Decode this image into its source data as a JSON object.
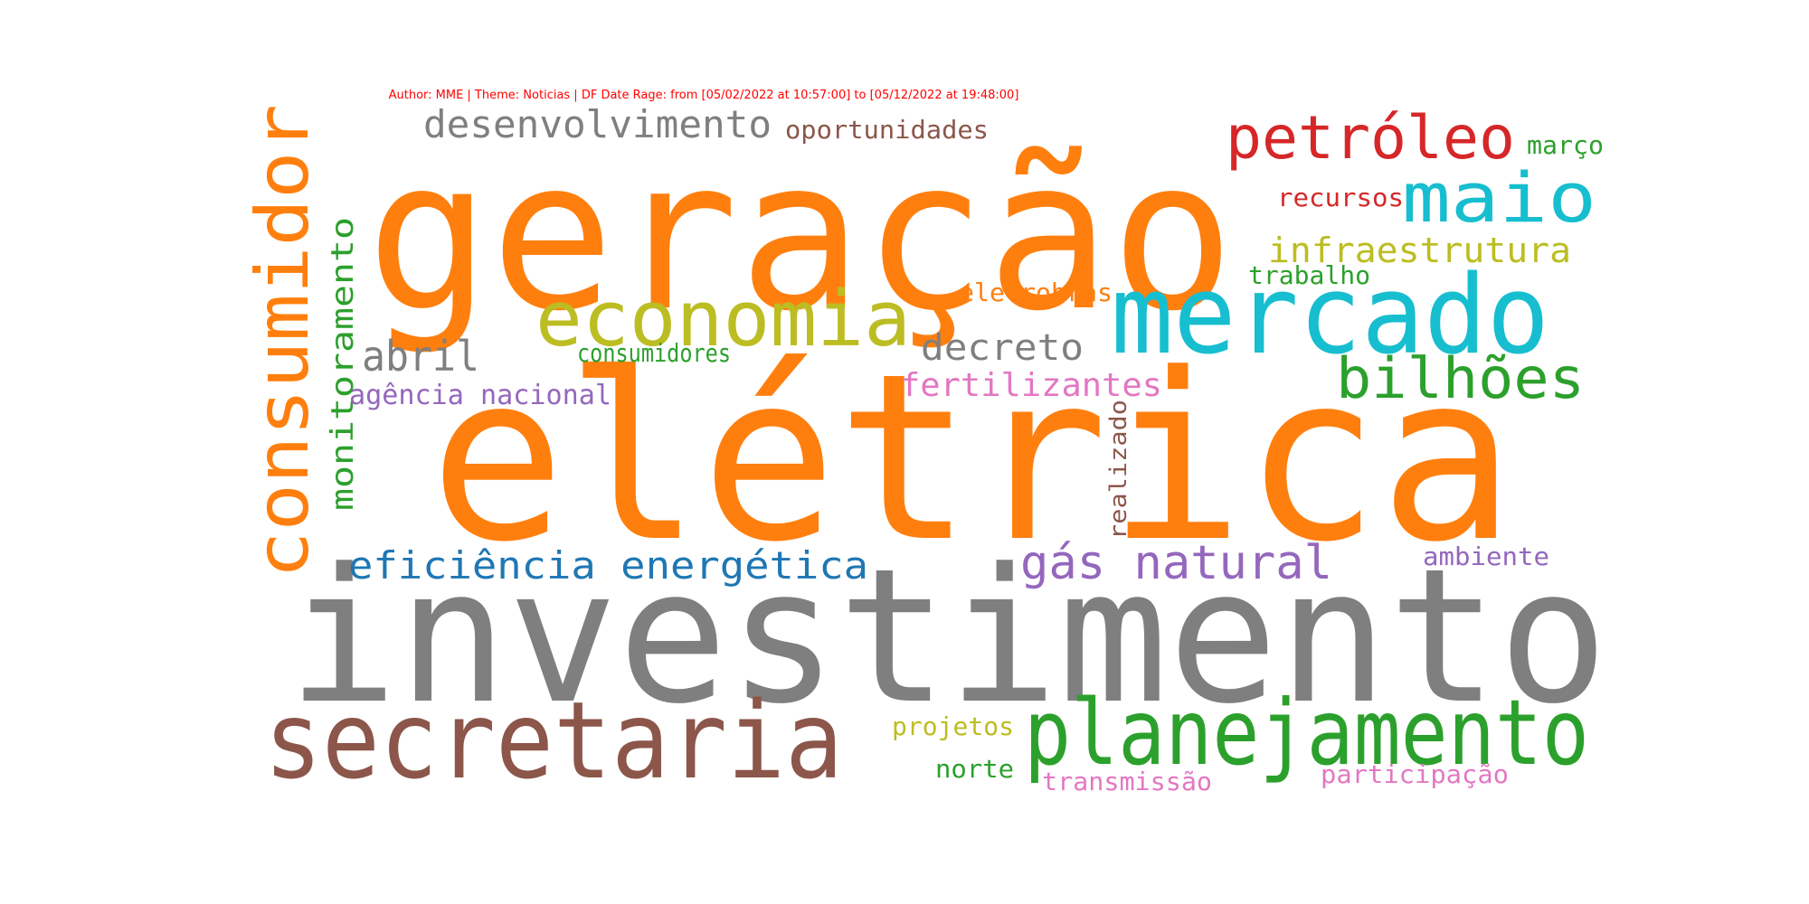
{
  "caption": "Author: MME | Theme: Noticias | DF Date Rage: from [05/02/2022 at 10:57:00] to [05/12/2022 at 19:48:00]",
  "colors": {
    "orange": "#ff7f0e",
    "gray": "#7f7f7f",
    "brown": "#8c564b",
    "green": "#2ca02c",
    "cyan": "#17becf",
    "olive": "#bcbd22",
    "red": "#d62728",
    "purple": "#9467bd",
    "blue": "#1f77b4",
    "pink": "#e377c2"
  },
  "words": [
    {
      "text": "elétrica",
      "color": "orange"
    },
    {
      "text": "geração",
      "color": "orange"
    },
    {
      "text": "investimento",
      "color": "gray"
    },
    {
      "text": "secretaria",
      "color": "brown"
    },
    {
      "text": "planejamento",
      "color": "green"
    },
    {
      "text": "mercado",
      "color": "cyan"
    },
    {
      "text": "consumidor",
      "color": "orange"
    },
    {
      "text": "economia",
      "color": "olive"
    },
    {
      "text": "petróleo",
      "color": "red"
    },
    {
      "text": "maio",
      "color": "cyan"
    },
    {
      "text": "bilhões",
      "color": "green"
    },
    {
      "text": "desenvolvimento",
      "color": "gray"
    },
    {
      "text": "gás natural",
      "color": "purple"
    },
    {
      "text": "eficiência energética",
      "color": "blue"
    },
    {
      "text": "decreto",
      "color": "gray"
    },
    {
      "text": "abril",
      "color": "gray"
    },
    {
      "text": "infraestrutura",
      "color": "olive"
    },
    {
      "text": "monitoramento",
      "color": "green"
    },
    {
      "text": "fertilizantes",
      "color": "pink"
    },
    {
      "text": "oportunidades",
      "color": "brown"
    },
    {
      "text": "agência nacional",
      "color": "purple"
    },
    {
      "text": "consumidores",
      "color": "green"
    },
    {
      "text": "eletrobras",
      "color": "orange"
    },
    {
      "text": "recursos",
      "color": "red"
    },
    {
      "text": "trabalho",
      "color": "green"
    },
    {
      "text": "março",
      "color": "green"
    },
    {
      "text": "realizado",
      "color": "brown"
    },
    {
      "text": "ambiente",
      "color": "purple"
    },
    {
      "text": "projetos",
      "color": "olive"
    },
    {
      "text": "norte",
      "color": "green"
    },
    {
      "text": "transmissão",
      "color": "pink"
    },
    {
      "text": "participação",
      "color": "pink"
    }
  ]
}
